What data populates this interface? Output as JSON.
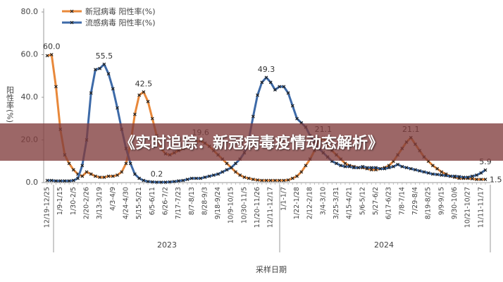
{
  "chart_data": {
    "type": "line",
    "banner": "《实时追踪：新冠病毒疫情动态解析》",
    "y_label": "阳性率(%)",
    "x_label": "采样日期",
    "year_groups": [
      "2023",
      "2024"
    ],
    "ylim": [
      0,
      80
    ],
    "yticks": [
      {
        "value": 0,
        "label": "0.0"
      },
      {
        "value": 20,
        "label": "20.0"
      },
      {
        "value": 40,
        "label": "40.0"
      },
      {
        "value": 60,
        "label": "60.0"
      },
      {
        "value": 80,
        "label": "80.0"
      }
    ],
    "categories": [
      "12/19-12/25",
      null,
      null,
      "1/9-1/15",
      null,
      null,
      "1/30-2/5",
      null,
      null,
      "2/20-2/26",
      null,
      null,
      "3/13-3/19",
      null,
      null,
      "4/3-4/9",
      null,
      null,
      "4/24-4/30",
      null,
      null,
      "5/15-5/21",
      null,
      null,
      "6/5-6/11",
      null,
      null,
      "6/26-7/2",
      null,
      null,
      "7/17-7/23",
      null,
      null,
      "8/7-8/13",
      null,
      null,
      "8/28-9/3",
      null,
      null,
      "9/18-9/24",
      null,
      null,
      "10/9-10/15",
      null,
      null,
      "10/30-11/5",
      null,
      null,
      "11/20-11/26",
      null,
      null,
      "12/11-12/17",
      null,
      null,
      "1/1-1/7",
      null,
      null,
      "1/22-1/28",
      null,
      null,
      "2/12-2/18",
      null,
      null,
      "3/4-3/10",
      null,
      null,
      "3/25-3/31",
      null,
      null,
      "4/15-4/21",
      null,
      null,
      "5/6-5/12",
      null,
      null,
      "5/27-6/2",
      null,
      null,
      "6/17-6/23",
      null,
      null,
      "7/8-7/14",
      null,
      null,
      "7/29-8/4",
      null,
      null,
      "8/19-8/25",
      null,
      null,
      "9/9-9/15",
      null,
      null,
      "9/30-10/6",
      null,
      null,
      "10/21-10/27",
      null,
      null,
      "11/11-11/17",
      null
    ],
    "series": [
      {
        "name": "新冠病毒 阳性率(%)",
        "color": "#e8883a",
        "values": [
          59.5,
          60.0,
          45,
          25,
          13,
          9,
          6,
          4,
          3,
          5,
          4,
          3,
          2.5,
          2.5,
          3,
          3,
          3.5,
          5,
          9,
          18,
          32,
          41,
          42.5,
          38,
          30,
          22,
          16,
          13.5,
          13,
          14,
          15,
          16,
          17,
          18,
          19,
          19.6,
          18.5,
          17,
          15,
          13,
          11,
          9,
          7,
          5,
          3.5,
          2.5,
          2,
          1.5,
          1.2,
          1,
          1,
          1,
          1,
          1,
          1,
          1.2,
          2,
          3,
          5,
          8,
          11,
          15,
          19,
          21.1,
          18,
          15,
          13,
          11,
          9,
          8,
          7.5,
          7,
          7,
          6.5,
          6,
          6,
          6.5,
          7,
          8,
          10,
          13,
          16,
          19,
          21.1,
          18,
          15,
          12,
          10,
          8,
          6.5,
          5,
          4,
          3,
          2.5,
          2,
          2,
          2,
          1.8,
          1.5,
          1.5,
          1.5
        ],
        "value_labels": [
          null,
          "60.0",
          null,
          null,
          null,
          null,
          null,
          null,
          null,
          null,
          null,
          null,
          null,
          null,
          null,
          null,
          null,
          null,
          null,
          null,
          null,
          null,
          "42.5",
          null,
          null,
          null,
          null,
          null,
          null,
          null,
          null,
          null,
          null,
          null,
          null,
          "19.6",
          null,
          null,
          null,
          null,
          null,
          null,
          null,
          null,
          null,
          null,
          null,
          null,
          null,
          null,
          null,
          null,
          null,
          null,
          null,
          null,
          null,
          null,
          null,
          null,
          null,
          null,
          null,
          "21.1",
          null,
          null,
          null,
          null,
          null,
          null,
          null,
          null,
          null,
          null,
          null,
          null,
          null,
          null,
          null,
          null,
          null,
          null,
          null,
          "21.1",
          null,
          null,
          null,
          null,
          null,
          null,
          null,
          null,
          null,
          null,
          null,
          null,
          null,
          null,
          null,
          null,
          "1.5"
        ]
      },
      {
        "name": "流感病毒 阳性率(%)",
        "color": "#3d6aa8",
        "values": [
          1,
          1,
          0.8,
          0.8,
          0.8,
          0.8,
          1,
          2,
          8,
          20,
          42,
          53,
          53.5,
          55.5,
          51,
          44,
          35,
          25,
          16,
          9,
          4,
          2,
          1,
          0.5,
          0.3,
          0.2,
          0.2,
          0.2,
          0.3,
          0.5,
          0.8,
          1,
          1.5,
          2,
          2,
          2,
          2.5,
          3,
          3.5,
          4,
          5,
          6,
          7,
          9,
          11,
          14,
          20,
          31,
          41,
          47,
          49.3,
          47,
          43.5,
          45,
          45,
          42,
          36,
          30,
          28,
          26,
          22,
          19,
          16,
          14,
          12,
          10,
          9,
          8,
          7.5,
          7.5,
          7,
          7,
          7.5,
          7,
          7,
          7,
          6.5,
          6.5,
          7,
          7.5,
          8.5,
          7.5,
          7,
          6.5,
          6,
          5.5,
          5,
          4.5,
          4,
          3.8,
          3.5,
          3.3,
          3,
          3,
          2.8,
          2.5,
          2.5,
          3,
          3.5,
          4.5,
          5.9
        ],
        "value_labels": [
          null,
          null,
          null,
          null,
          null,
          null,
          null,
          null,
          null,
          null,
          null,
          null,
          null,
          "55.5",
          null,
          null,
          null,
          null,
          null,
          null,
          null,
          null,
          null,
          null,
          null,
          "0.2",
          null,
          null,
          null,
          null,
          null,
          null,
          null,
          null,
          null,
          null,
          null,
          null,
          null,
          null,
          null,
          null,
          null,
          null,
          null,
          null,
          null,
          null,
          null,
          null,
          "49.3",
          null,
          null,
          null,
          null,
          null,
          null,
          null,
          null,
          null,
          null,
          null,
          null,
          null,
          null,
          null,
          null,
          null,
          null,
          null,
          null,
          null,
          null,
          null,
          null,
          null,
          null,
          null,
          null,
          null,
          null,
          null,
          null,
          null,
          null,
          null,
          null,
          null,
          null,
          null,
          null,
          null,
          null,
          null,
          null,
          null,
          null,
          null,
          null,
          null,
          "5.9"
        ]
      }
    ]
  }
}
